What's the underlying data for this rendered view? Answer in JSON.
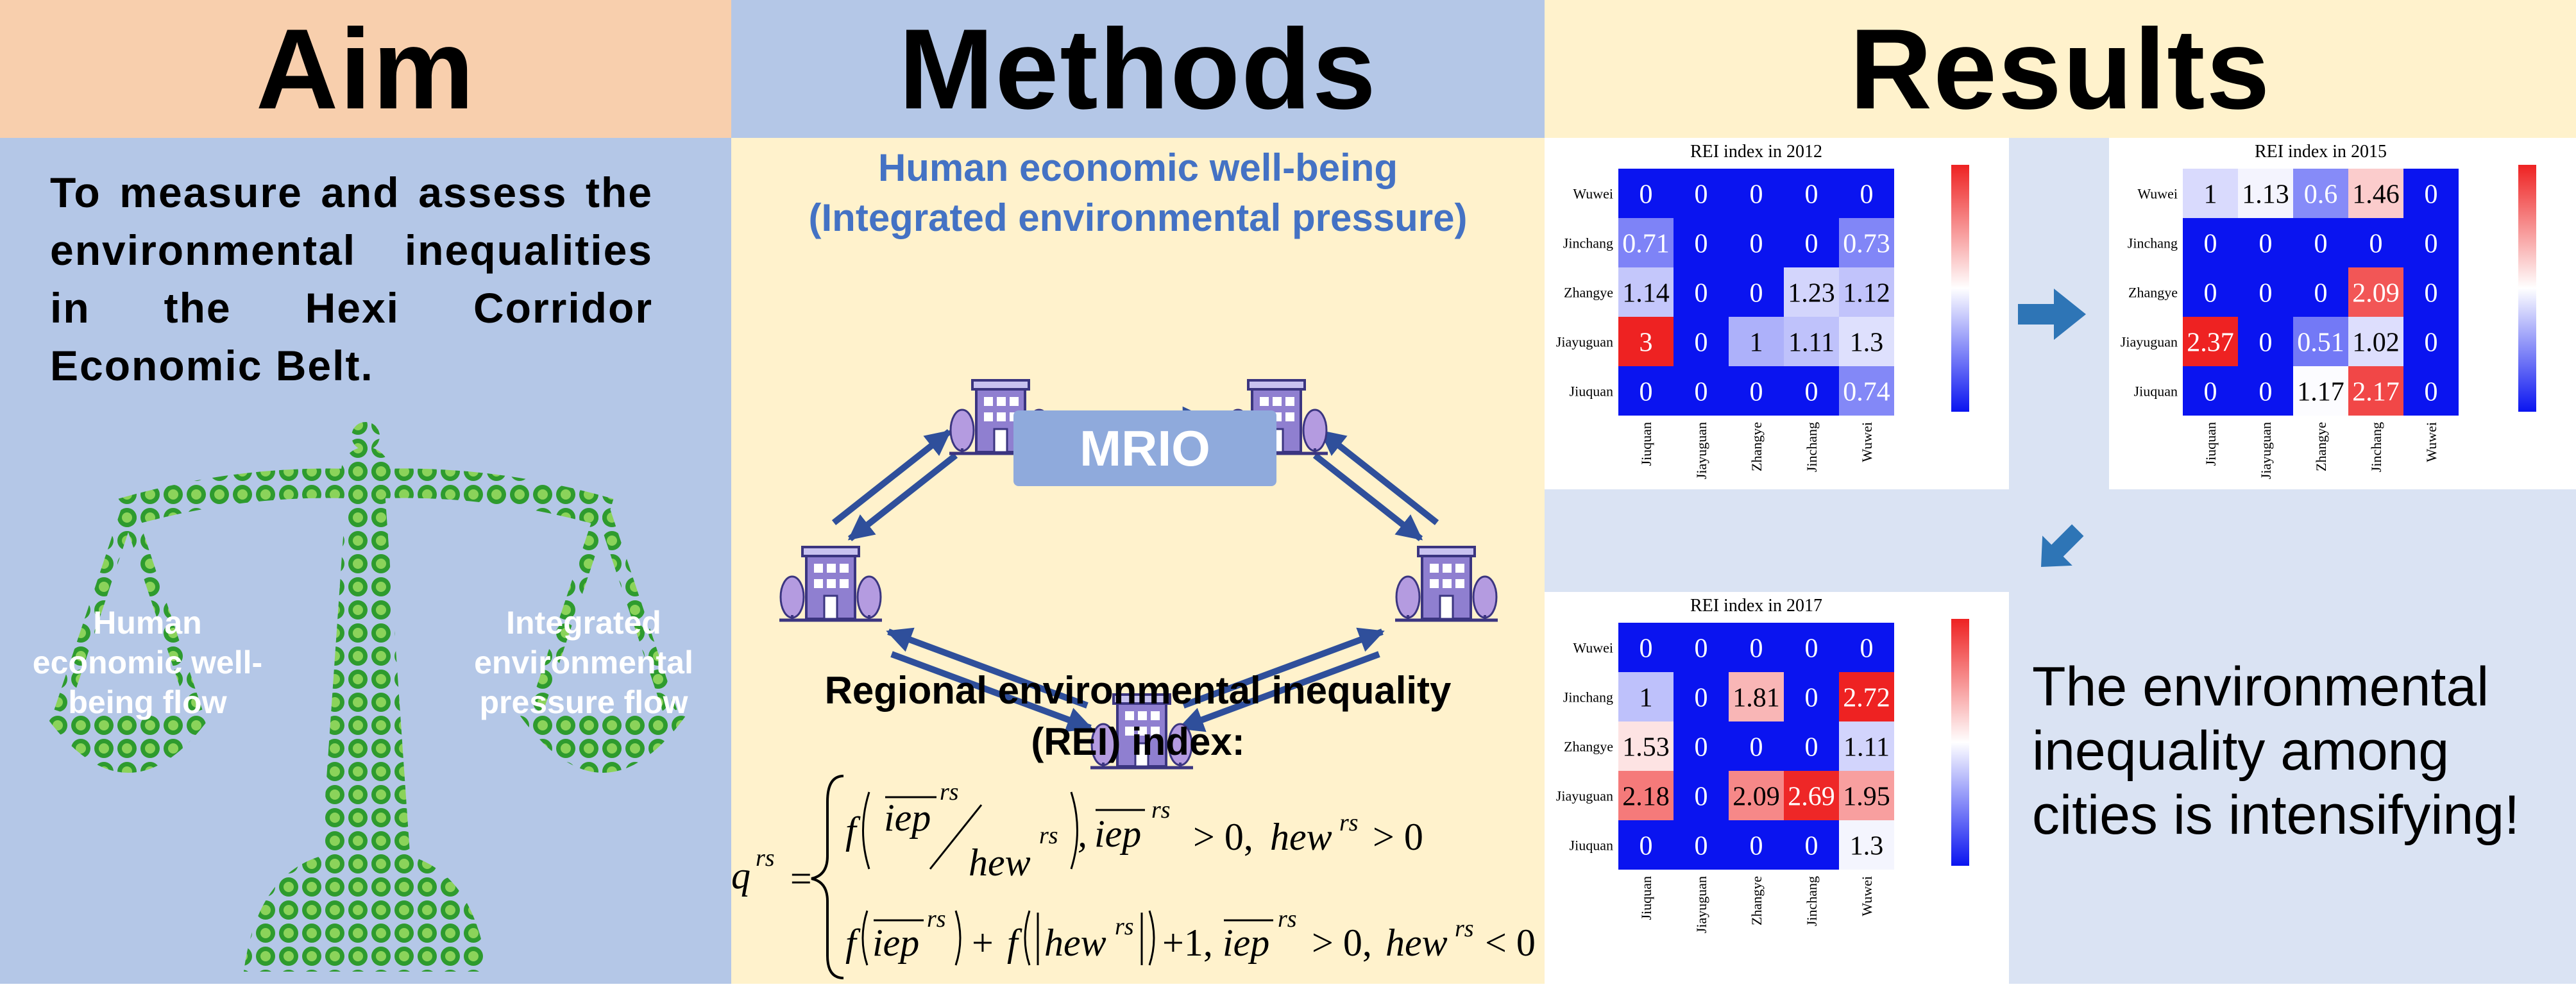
{
  "headers": {
    "aim": "Aim",
    "methods": "Methods",
    "results": "Results"
  },
  "aim": {
    "text": "To measure and assess the environmental inequalities in the Hexi Corridor Economic Belt.",
    "left_label": "Human economic well-being flow",
    "right_label": "Integrated environmental pressure flow"
  },
  "methods": {
    "title_line1": "Human economic well-being",
    "title_line2": "(Integrated environmental pressure)",
    "mrio_label": "MRIO",
    "rei_line1": "Regional environmental inequality",
    "rei_line2": "(REI) index:"
  },
  "results": {
    "conclusion": "The environmental inequality among cities is intensifying!"
  },
  "colors": {
    "high": "#ee2222",
    "mid": "#ffffff",
    "low": "#0a14f0"
  },
  "chart_data": [
    {
      "type": "heatmap",
      "title": "REI index in 2012",
      "rows": [
        "Wuwei",
        "Jinchang",
        "Zhangye",
        "Jiayuguan",
        "Jiuquan"
      ],
      "cols": [
        "Jiuquan",
        "Jiayuguan",
        "Zhangye",
        "Jinchang",
        "Wuwei"
      ],
      "values": [
        [
          0,
          0,
          0,
          0,
          0
        ],
        [
          0.71,
          0,
          0,
          0,
          0.73
        ],
        [
          1.14,
          0,
          0,
          1.23,
          1.12
        ],
        [
          3,
          0,
          1,
          1.11,
          1.3
        ],
        [
          0,
          0,
          0,
          0,
          0.74
        ]
      ],
      "vmax": 3
    },
    {
      "type": "heatmap",
      "title": "REI index in 2015",
      "rows": [
        "Wuwei",
        "Jinchang",
        "Zhangye",
        "Jiayuguan",
        "Jiuquan"
      ],
      "cols": [
        "Jiuquan",
        "Jiayuguan",
        "Zhangye",
        "Jinchang",
        "Wuwei"
      ],
      "values": [
        [
          1,
          1.13,
          0.6,
          1.46,
          0
        ],
        [
          0,
          0,
          0,
          0,
          0
        ],
        [
          0,
          0,
          0,
          2.09,
          0
        ],
        [
          2.37,
          0,
          0.51,
          1.02,
          0
        ],
        [
          0,
          0,
          1.17,
          2.17,
          0
        ]
      ],
      "vmax": 2.37
    },
    {
      "type": "heatmap",
      "title": "REI index in 2017",
      "rows": [
        "Wuwei",
        "Jinchang",
        "Zhangye",
        "Jiayuguan",
        "Jiuquan"
      ],
      "cols": [
        "Jiuquan",
        "Jiayuguan",
        "Zhangye",
        "Jinchang",
        "Wuwei"
      ],
      "values": [
        [
          0,
          0,
          0,
          0,
          0
        ],
        [
          1,
          0,
          1.81,
          0,
          2.72
        ],
        [
          1.53,
          0,
          0,
          0,
          1.11
        ],
        [
          2.18,
          0,
          2.09,
          2.69,
          1.95
        ],
        [
          0,
          0,
          0,
          0,
          1.3
        ]
      ],
      "vmax": 2.72
    }
  ]
}
